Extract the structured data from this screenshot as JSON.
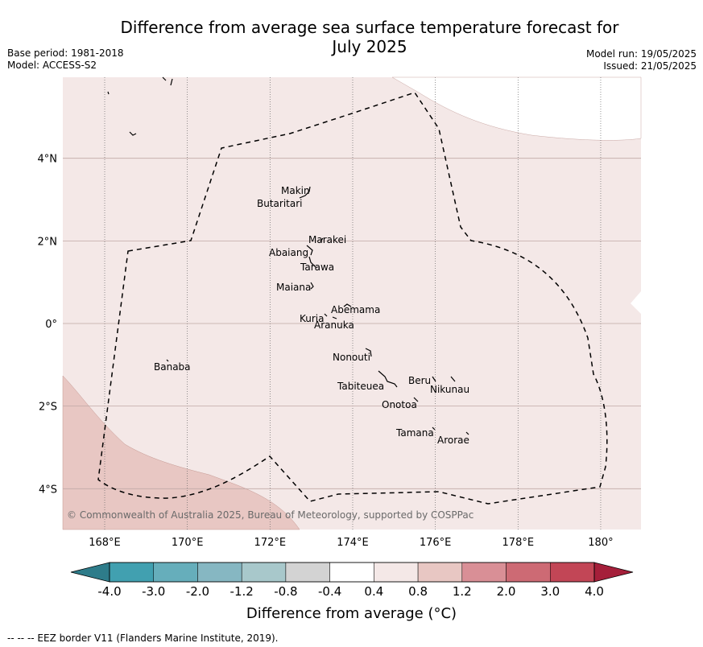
{
  "title_line1": "Difference from average sea surface temperature forecast for",
  "title_line2": "July 2025",
  "base_period": "Base period: 1981-2018",
  "model": "Model: ACCESS-S2",
  "model_run": "Model run: 19/05/2025",
  "issued": "Issued: 21/05/2025",
  "map": {
    "x_ticks": [
      {
        "lon": 168,
        "label": "168°E"
      },
      {
        "lon": 170,
        "label": "170°E"
      },
      {
        "lon": 172,
        "label": "172°E"
      },
      {
        "lon": 174,
        "label": "174°E"
      },
      {
        "lon": 176,
        "label": "176°E"
      },
      {
        "lon": 178,
        "label": "178°E"
      },
      {
        "lon": 180,
        "label": "180°"
      }
    ],
    "y_ticks": [
      {
        "lat": 4,
        "label": "4°N"
      },
      {
        "lat": 2,
        "label": "2°N"
      },
      {
        "lat": 0,
        "label": "0°"
      },
      {
        "lat": -2,
        "label": "2°S"
      },
      {
        "lat": -4,
        "label": "4°S"
      }
    ],
    "islands": [
      {
        "name": "Makin",
        "lat": 3.1,
        "lon": 172.9
      },
      {
        "name": "Butaritari",
        "lat": 2.9,
        "lon": 172.8
      },
      {
        "name": "Marakei",
        "lat": 2.0,
        "lon": 173.3
      },
      {
        "name": "Abaiang",
        "lat": 1.8,
        "lon": 172.95
      },
      {
        "name": "Tarawa",
        "lat": 1.4,
        "lon": 173.0
      },
      {
        "name": "Maiana",
        "lat": 0.95,
        "lon": 173.0
      },
      {
        "name": "Abemama",
        "lat": 0.4,
        "lon": 173.85
      },
      {
        "name": "Kuria",
        "lat": 0.2,
        "lon": 173.4
      },
      {
        "name": "Aranuka",
        "lat": 0.15,
        "lon": 173.6
      },
      {
        "name": "Nonouti",
        "lat": -0.7,
        "lon": 174.4
      },
      {
        "name": "Banaba",
        "lat": -0.9,
        "lon": 169.5
      },
      {
        "name": "Tabiteuea",
        "lat": -1.3,
        "lon": 174.9
      },
      {
        "name": "Beru",
        "lat": -1.35,
        "lon": 175.95
      },
      {
        "name": "Nikunau",
        "lat": -1.4,
        "lon": 176.45
      },
      {
        "name": "Onotoa",
        "lat": -1.85,
        "lon": 175.55
      },
      {
        "name": "Tamana",
        "lat": -2.5,
        "lon": 175.98
      },
      {
        "name": "Arorae",
        "lat": -2.65,
        "lon": 176.8
      }
    ],
    "attribution": "© Commonwealth of Australia 2025, Bureau of Meteorology, supported by COSPPac"
  },
  "colorbar": {
    "labels": [
      "-4.0",
      "-3.0",
      "-2.0",
      "-1.2",
      "-0.8",
      "-0.4",
      "0.4",
      "0.8",
      "1.2",
      "2.0",
      "3.0",
      "4.0"
    ],
    "colors": [
      "#41a0b0",
      "#66aebb",
      "#86b7c2",
      "#a8c8cb",
      "#d3d3d3",
      "#ffffff",
      "#f4e8e7",
      "#e8c7c3",
      "#d98f96",
      "#cd6a74",
      "#c24656"
    ],
    "low_color": "#2e7c8a",
    "high_color": "#a51f3a",
    "title": "Difference from average (°C)"
  },
  "footer": "--  --  -- EEZ border V11 (Flanders Marine Institute, 2019)."
}
